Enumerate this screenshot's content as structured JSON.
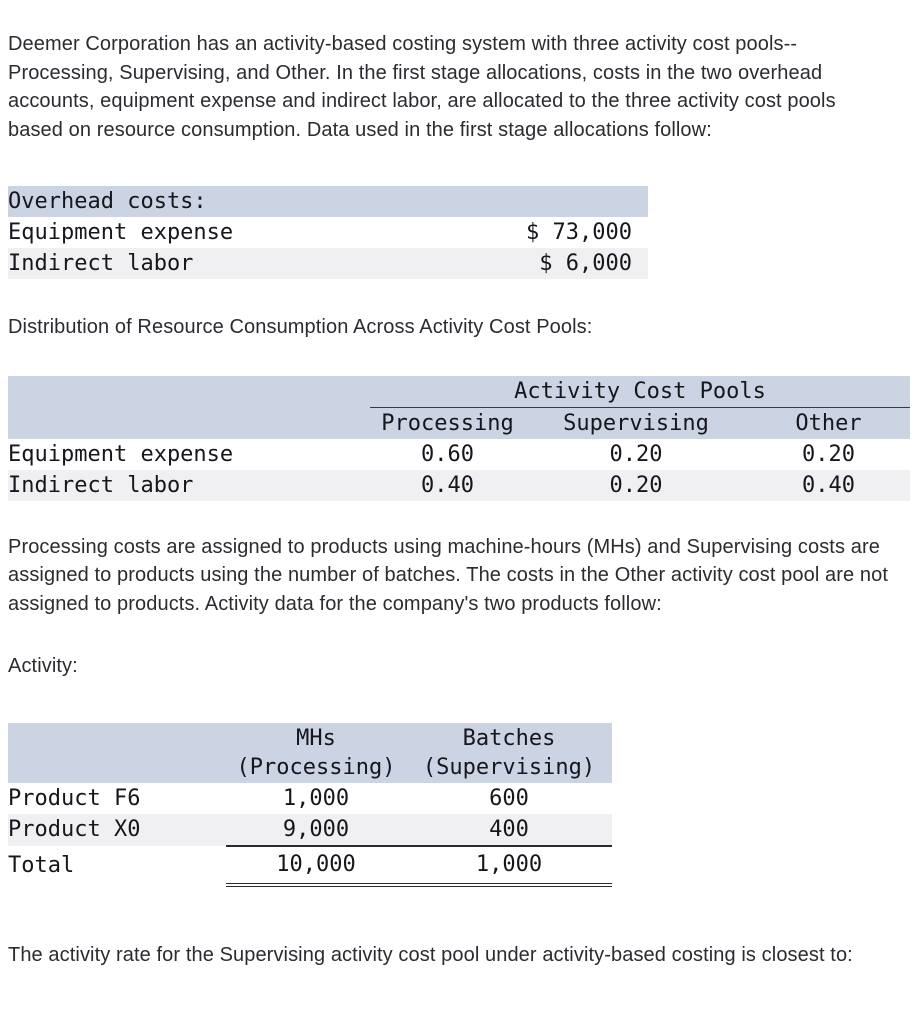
{
  "colors": {
    "table_header_bg": "#ccd3e2",
    "alt_row_bg": "#f0f0f2",
    "page_bg": "#ffffff",
    "text": "#2b2b31"
  },
  "paragraphs": {
    "intro": "Deemer Corporation has an activity-based costing system with three activity cost pools--Processing, Supervising, and Other. In the first stage allocations, costs in the two overhead accounts, equipment expense and indirect labor, are allocated to the three activity cost pools based on resource consumption. Data used in the first stage allocations follow:",
    "distribution_heading": "Distribution of Resource Consumption Across Activity Cost Pools:",
    "assignment": "Processing costs are assigned to products using machine-hours (MHs) and Supervising costs are assigned to products using the number of batches. The costs in the Other activity cost pool are not assigned to products. Activity data for the company's two products follow:",
    "activity_label": "Activity:",
    "question": "The activity rate for the Supervising activity cost pool under activity-based costing is closest to:"
  },
  "overhead_table": {
    "header": "Overhead costs:",
    "rows": [
      {
        "label": "Equipment expense",
        "value": "$ 73,000"
      },
      {
        "label": "Indirect labor",
        "value": "$ 6,000"
      }
    ]
  },
  "distribution_table": {
    "group_header": "Activity Cost Pools",
    "columns": [
      "Processing",
      "Supervising",
      "Other"
    ],
    "rows": [
      {
        "label": "Equipment expense",
        "values": [
          "0.60",
          "0.20",
          "0.20"
        ]
      },
      {
        "label": "Indirect labor",
        "values": [
          "0.40",
          "0.20",
          "0.40"
        ]
      }
    ]
  },
  "activity_table": {
    "columns": [
      {
        "line1": "MHs",
        "line2": "(Processing)"
      },
      {
        "line1": "Batches",
        "line2": "(Supervising)"
      }
    ],
    "rows": [
      {
        "label": "Product F6",
        "values": [
          "1,000",
          "600"
        ]
      },
      {
        "label": "Product X0",
        "values": [
          "9,000",
          "400"
        ]
      }
    ],
    "total": {
      "label": "Total",
      "values": [
        "10,000",
        "1,000"
      ]
    }
  }
}
